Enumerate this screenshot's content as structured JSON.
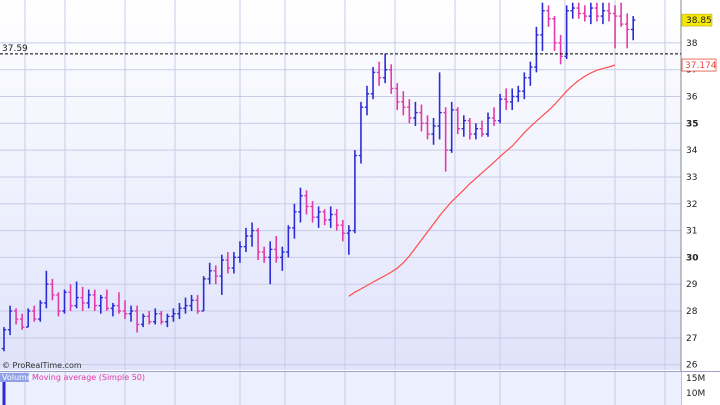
{
  "credit": "© ProRealTime.com",
  "colors": {
    "up": "#2b2bd6",
    "down": "#e23aa8",
    "ma": "#ff4d4d",
    "grid": "#c9cbe6",
    "bg_top": "#ffffff",
    "bg_bottom": "#dfe3fb",
    "last_price_badge": "#f2e60a",
    "ma_badge_text": "#e8493f"
  },
  "chart_data": [
    {
      "type": "ohlc",
      "title": "",
      "xlabel": "",
      "ylabel": "",
      "ylim": [
        25.8,
        39.6
      ],
      "y_ticks": [
        26,
        27,
        28,
        29,
        30,
        31,
        32,
        33,
        34,
        35,
        36,
        37,
        38
      ],
      "y_tick_labels": [
        "26",
        "27",
        "28",
        "29",
        "30",
        "31",
        "32",
        "33",
        "34",
        "35",
        "36",
        "37",
        "38"
      ],
      "bold_ticks": [
        30,
        35
      ],
      "grid": true,
      "bars": [
        [
          26.6,
          27.4,
          26.5,
          27.3
        ],
        [
          27.3,
          28.2,
          27.1,
          28.0
        ],
        [
          28.0,
          28.1,
          27.5,
          27.7
        ],
        [
          27.7,
          27.9,
          27.3,
          27.4
        ],
        [
          27.4,
          28.1,
          27.4,
          28.0
        ],
        [
          28.0,
          28.2,
          27.6,
          27.7
        ],
        [
          27.7,
          28.4,
          27.6,
          28.3
        ],
        [
          28.3,
          29.5,
          28.1,
          29.0
        ],
        [
          29.0,
          29.2,
          28.4,
          28.6
        ],
        [
          28.6,
          28.7,
          27.8,
          28.0
        ],
        [
          28.0,
          28.8,
          27.9,
          28.7
        ],
        [
          28.7,
          29.0,
          28.0,
          28.2
        ],
        [
          28.2,
          29.1,
          28.1,
          28.5
        ],
        [
          28.5,
          28.9,
          28.0,
          28.3
        ],
        [
          28.3,
          28.8,
          28.1,
          28.6
        ],
        [
          28.6,
          28.8,
          28.0,
          28.2
        ],
        [
          28.2,
          28.6,
          27.9,
          28.5
        ],
        [
          28.5,
          28.8,
          28.0,
          28.1
        ],
        [
          28.1,
          28.3,
          27.8,
          28.2
        ],
        [
          28.2,
          28.7,
          27.9,
          28.0
        ],
        [
          28.0,
          28.4,
          27.7,
          27.9
        ],
        [
          27.9,
          28.2,
          27.6,
          28.0
        ],
        [
          28.0,
          28.2,
          27.2,
          27.5
        ],
        [
          27.5,
          27.9,
          27.4,
          27.8
        ],
        [
          27.8,
          28.0,
          27.5,
          27.6
        ],
        [
          27.6,
          28.1,
          27.5,
          27.9
        ],
        [
          27.9,
          28.0,
          27.5,
          27.6
        ],
        [
          27.6,
          27.9,
          27.4,
          27.8
        ],
        [
          27.8,
          28.1,
          27.6,
          27.9
        ],
        [
          27.9,
          28.3,
          27.7,
          28.1
        ],
        [
          28.1,
          28.5,
          27.9,
          28.2
        ],
        [
          28.2,
          28.6,
          28.0,
          28.4
        ],
        [
          28.4,
          28.6,
          27.9,
          28.0
        ],
        [
          28.0,
          29.3,
          28.0,
          29.2
        ],
        [
          29.2,
          29.8,
          29.0,
          29.5
        ],
        [
          29.5,
          29.7,
          29.0,
          29.3
        ],
        [
          29.3,
          30.1,
          28.6,
          29.9
        ],
        [
          29.9,
          30.2,
          29.4,
          29.6
        ],
        [
          29.6,
          30.2,
          29.4,
          30.0
        ],
        [
          30.0,
          30.6,
          29.8,
          30.4
        ],
        [
          30.4,
          31.1,
          30.2,
          30.8
        ],
        [
          30.8,
          31.3,
          30.4,
          31.0
        ],
        [
          31.0,
          31.1,
          29.9,
          30.2
        ],
        [
          30.2,
          30.4,
          29.8,
          30.0
        ],
        [
          30.0,
          30.6,
          29.0,
          30.3
        ],
        [
          30.3,
          30.8,
          29.8,
          30.0
        ],
        [
          30.0,
          30.4,
          29.5,
          30.2
        ],
        [
          30.2,
          31.2,
          30.0,
          31.1
        ],
        [
          31.1,
          32.0,
          30.7,
          31.7
        ],
        [
          31.7,
          32.6,
          31.3,
          32.3
        ],
        [
          32.3,
          32.5,
          31.6,
          31.9
        ],
        [
          31.9,
          32.1,
          31.3,
          31.5
        ],
        [
          31.5,
          31.9,
          31.1,
          31.7
        ],
        [
          31.7,
          31.8,
          31.2,
          31.4
        ],
        [
          31.4,
          31.9,
          31.1,
          31.6
        ],
        [
          31.6,
          31.8,
          31.0,
          31.2
        ],
        [
          31.2,
          31.4,
          30.6,
          30.9
        ],
        [
          30.9,
          31.2,
          30.1,
          31.0
        ],
        [
          31.0,
          34.0,
          30.9,
          33.8
        ],
        [
          33.8,
          35.8,
          33.5,
          35.6
        ],
        [
          35.6,
          36.4,
          35.3,
          36.1
        ],
        [
          36.1,
          37.1,
          35.9,
          36.9
        ],
        [
          36.9,
          37.3,
          36.4,
          36.7
        ],
        [
          36.7,
          37.6,
          36.5,
          37.0
        ],
        [
          37.0,
          37.2,
          36.1,
          36.3
        ],
        [
          36.3,
          36.5,
          35.5,
          35.8
        ],
        [
          35.8,
          36.2,
          35.3,
          35.6
        ],
        [
          35.6,
          35.9,
          35.0,
          35.2
        ],
        [
          35.2,
          35.8,
          34.9,
          35.4
        ],
        [
          35.4,
          35.7,
          34.7,
          35.0
        ],
        [
          35.0,
          35.3,
          34.4,
          34.6
        ],
        [
          34.6,
          35.2,
          34.2,
          34.9
        ],
        [
          34.9,
          36.9,
          34.4,
          35.4
        ],
        [
          35.4,
          35.6,
          33.2,
          34.0
        ],
        [
          34.0,
          35.8,
          33.9,
          35.5
        ],
        [
          35.5,
          35.6,
          34.6,
          34.8
        ],
        [
          34.8,
          35.3,
          34.5,
          35.1
        ],
        [
          35.1,
          35.2,
          34.4,
          34.6
        ],
        [
          34.6,
          35.0,
          34.4,
          34.8
        ],
        [
          34.8,
          35.1,
          34.5,
          34.6
        ],
        [
          34.6,
          35.4,
          34.5,
          35.2
        ],
        [
          35.2,
          35.6,
          34.9,
          35.1
        ],
        [
          35.1,
          36.1,
          35.0,
          35.9
        ],
        [
          35.9,
          36.3,
          35.5,
          35.8
        ],
        [
          35.8,
          36.3,
          35.5,
          36.0
        ],
        [
          36.0,
          36.4,
          35.8,
          36.2
        ],
        [
          36.2,
          36.9,
          35.9,
          36.7
        ],
        [
          36.7,
          37.3,
          36.4,
          37.1
        ],
        [
          37.1,
          38.6,
          36.9,
          38.3
        ],
        [
          38.3,
          39.5,
          37.7,
          39.2
        ],
        [
          39.2,
          39.4,
          38.6,
          38.9
        ],
        [
          38.9,
          39.0,
          37.7,
          38.0
        ],
        [
          38.0,
          38.3,
          37.2,
          37.5
        ],
        [
          37.5,
          39.4,
          37.4,
          39.2
        ],
        [
          39.2,
          39.5,
          38.9,
          39.3
        ],
        [
          39.3,
          39.5,
          38.9,
          39.1
        ],
        [
          39.1,
          39.4,
          38.8,
          39.0
        ],
        [
          39.0,
          39.5,
          38.7,
          39.3
        ],
        [
          39.3,
          39.5,
          38.8,
          39.0
        ],
        [
          39.0,
          39.5,
          38.7,
          39.2
        ],
        [
          39.2,
          39.5,
          38.8,
          39.1
        ],
        [
          39.1,
          39.4,
          37.8,
          39.0
        ],
        [
          39.0,
          39.5,
          38.6,
          38.7
        ],
        [
          38.7,
          39.1,
          37.8,
          38.5
        ],
        [
          38.5,
          39.0,
          38.1,
          38.85
        ]
      ],
      "series": [
        {
          "name": "Moving average (Simple 50)",
          "values": [
            28.55,
            28.7,
            28.82,
            28.95,
            29.08,
            29.2,
            29.32,
            29.45,
            29.6,
            29.8,
            30.05,
            30.35,
            30.65,
            30.95,
            31.25,
            31.55,
            31.82,
            32.08,
            32.3,
            32.52,
            32.75,
            32.95,
            33.15,
            33.35,
            33.55,
            33.76,
            33.96,
            34.15,
            34.4,
            34.65,
            34.88,
            35.08,
            35.28,
            35.48,
            35.7,
            35.95,
            36.2,
            36.42,
            36.6,
            36.75,
            36.88,
            36.98,
            37.05,
            37.1,
            37.174
          ],
          "start_bar": 57
        }
      ],
      "reference_lines": [
        {
          "value": 37.59,
          "label": "37.59"
        }
      ],
      "right_badges": [
        {
          "value": 38.85,
          "label": "38.85"
        },
        {
          "value": 37.174,
          "label": "37.174"
        }
      ]
    },
    {
      "type": "bar",
      "title": "",
      "xlabel": "",
      "ylabel": "",
      "legend": [
        "Volume",
        "Moving average (Simple 50)"
      ],
      "legend_placement": "top-left",
      "y_ticks": [
        10,
        15
      ],
      "y_tick_labels": [
        "10M",
        "15M"
      ],
      "values": [
        15
      ]
    }
  ]
}
